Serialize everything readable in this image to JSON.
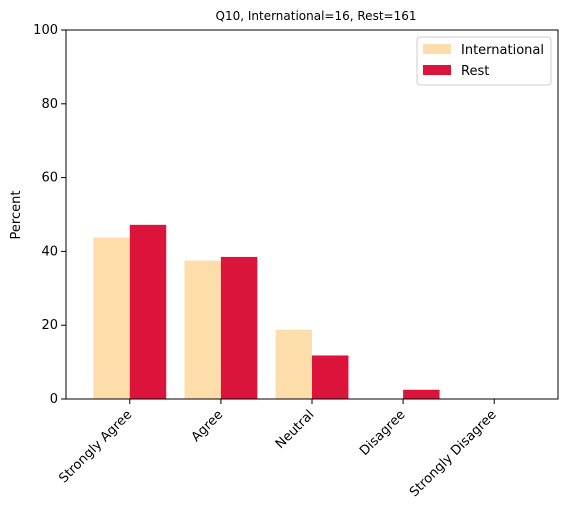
{
  "chart_data": {
    "type": "bar",
    "title": "Q10, International=16, Rest=161",
    "xlabel": "",
    "ylabel": "Percent",
    "ylim": [
      0,
      100
    ],
    "yticks": [
      0,
      20,
      40,
      60,
      80,
      100
    ],
    "grid": false,
    "legend_position": "top-right",
    "categories": [
      "Strongly Agree",
      "Agree",
      "Neutral",
      "Disagree",
      "Strongly Disagree"
    ],
    "series": [
      {
        "name": "International",
        "color": "#fddeab",
        "values": [
          43.75,
          37.5,
          18.75,
          0,
          0
        ]
      },
      {
        "name": "Rest",
        "color": "#dc143c",
        "values": [
          47.2,
          38.5,
          11.8,
          2.5,
          0
        ]
      }
    ]
  }
}
